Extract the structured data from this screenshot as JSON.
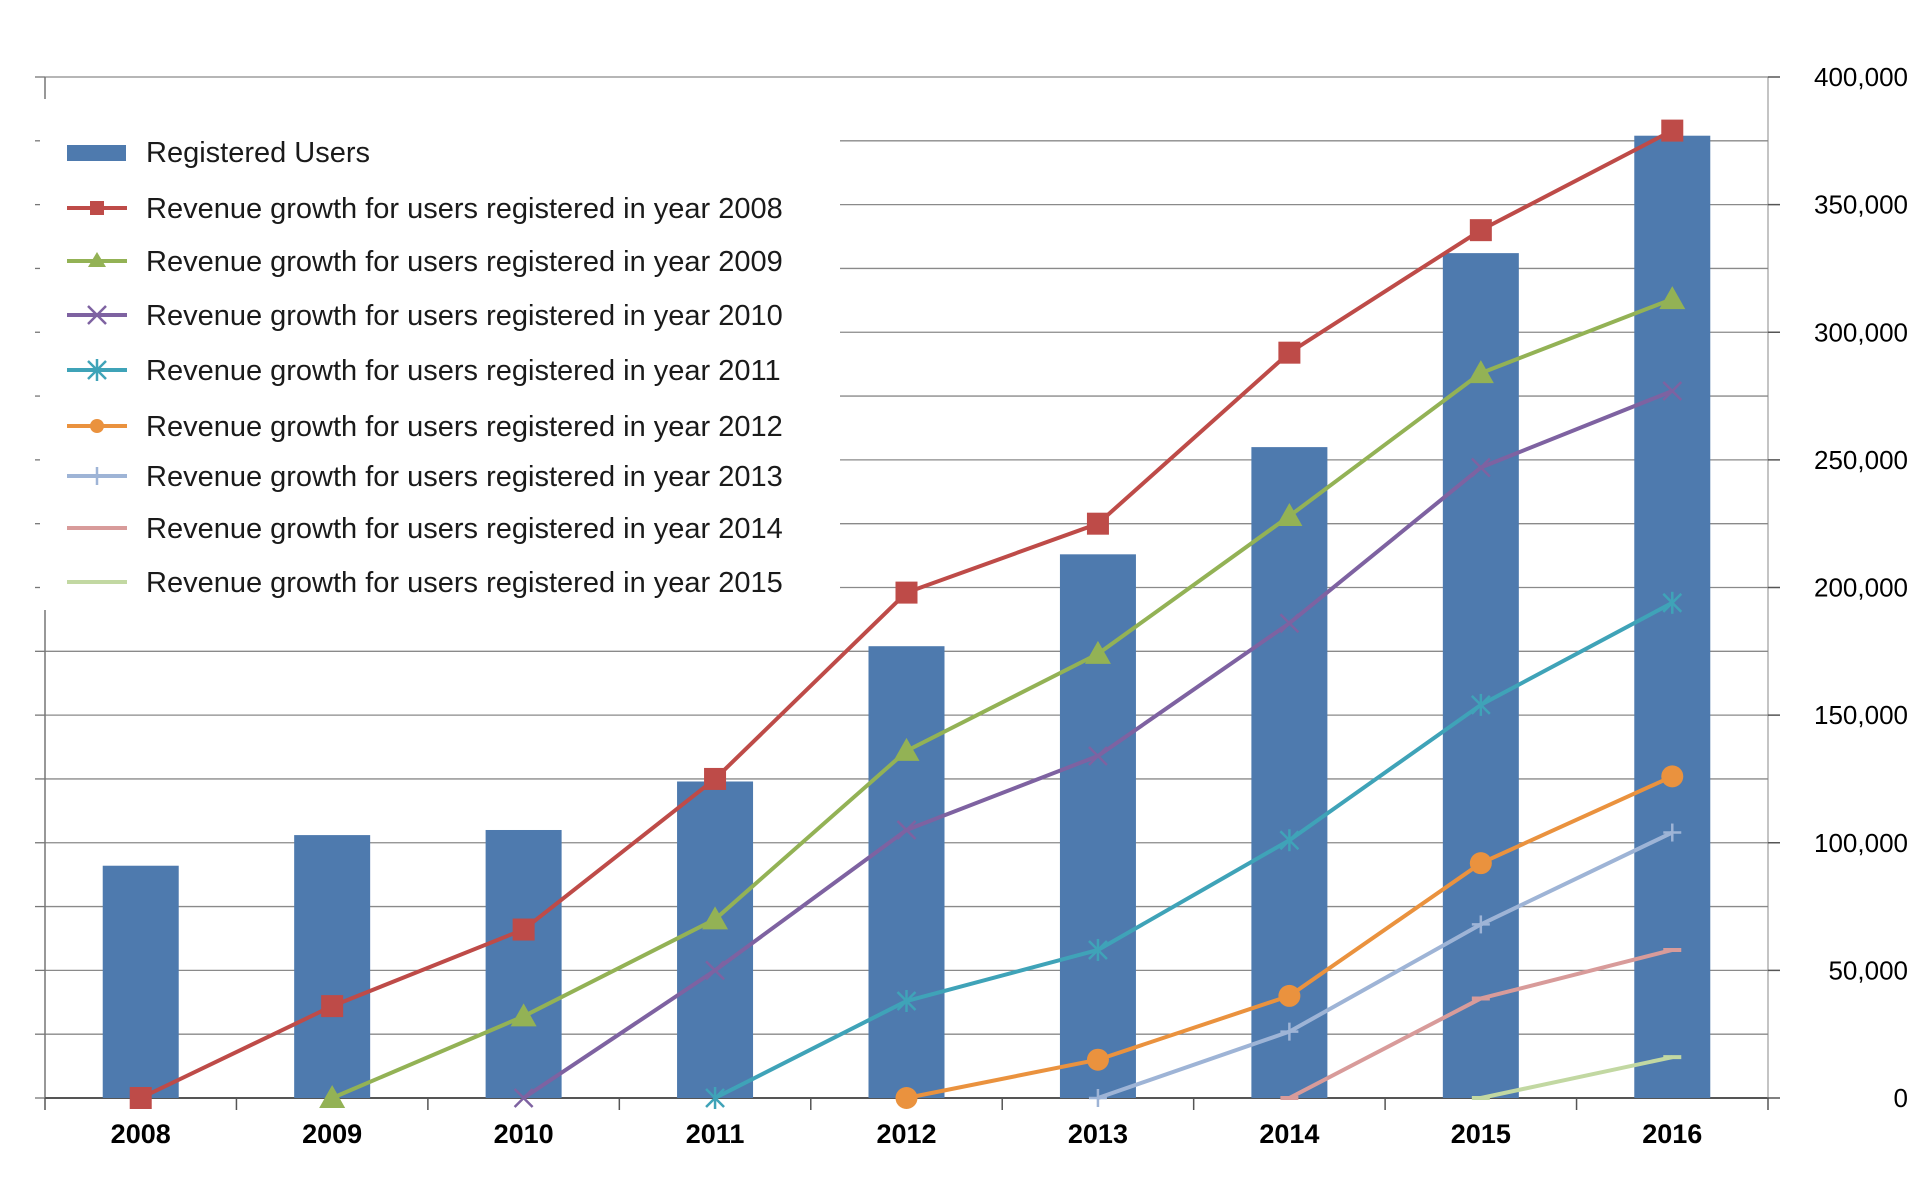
{
  "chart_data": {
    "type": "bar",
    "categories": [
      "2008",
      "2009",
      "2010",
      "2011",
      "2012",
      "2013",
      "2014",
      "2015",
      "2016"
    ],
    "y2_ticks": [
      "0",
      "50,000",
      "100,000",
      "150,000",
      "200,000",
      "250,000",
      "300,000",
      "350,000",
      "400,000"
    ],
    "ylim": [
      0,
      400000
    ],
    "grid": true,
    "legend_placement": "top-left",
    "bar_series": {
      "name": "Registered Users",
      "color": "#4E7AAE",
      "values": [
        91000,
        103000,
        105000,
        124000,
        177000,
        213000,
        255000,
        331000,
        377000
      ]
    },
    "series": [
      {
        "name": "Revenue growth for users registered in year 2008",
        "color": "#BE4B48",
        "marker": "square",
        "values": [
          0,
          36000,
          66000,
          125000,
          198000,
          225000,
          292000,
          340000,
          379000
        ]
      },
      {
        "name": "Revenue growth for users registered in year 2009",
        "color": "#93B255",
        "marker": "triangle",
        "values": [
          null,
          0,
          32000,
          70000,
          136000,
          174000,
          228000,
          284000,
          313000
        ]
      },
      {
        "name": "Revenue growth for users registered in year 2010",
        "color": "#7E62A1",
        "marker": "x",
        "values": [
          null,
          null,
          0,
          50000,
          105000,
          134000,
          186000,
          247000,
          277000
        ]
      },
      {
        "name": "Revenue growth for users registered in year 2011",
        "color": "#3FA3B8",
        "marker": "star",
        "values": [
          null,
          null,
          null,
          0,
          38000,
          58000,
          101000,
          154000,
          194000
        ]
      },
      {
        "name": "Revenue growth for users registered in year 2012",
        "color": "#EA923E",
        "marker": "circle",
        "values": [
          null,
          null,
          null,
          null,
          0,
          15000,
          40000,
          92000,
          126000
        ]
      },
      {
        "name": "Revenue growth for users registered in year 2013",
        "color": "#9EB4D6",
        "marker": "plus",
        "values": [
          null,
          null,
          null,
          null,
          null,
          0,
          26000,
          68000,
          104000
        ]
      },
      {
        "name": "Revenue growth for users registered in year 2014",
        "color": "#D89B9A",
        "marker": "dash",
        "values": [
          null,
          null,
          null,
          null,
          null,
          null,
          0,
          39000,
          58000
        ]
      },
      {
        "name": "Revenue growth for users registered in year 2015",
        "color": "#C2D8A2",
        "marker": "dash",
        "values": [
          null,
          null,
          null,
          null,
          null,
          null,
          null,
          0,
          16000
        ]
      }
    ]
  }
}
